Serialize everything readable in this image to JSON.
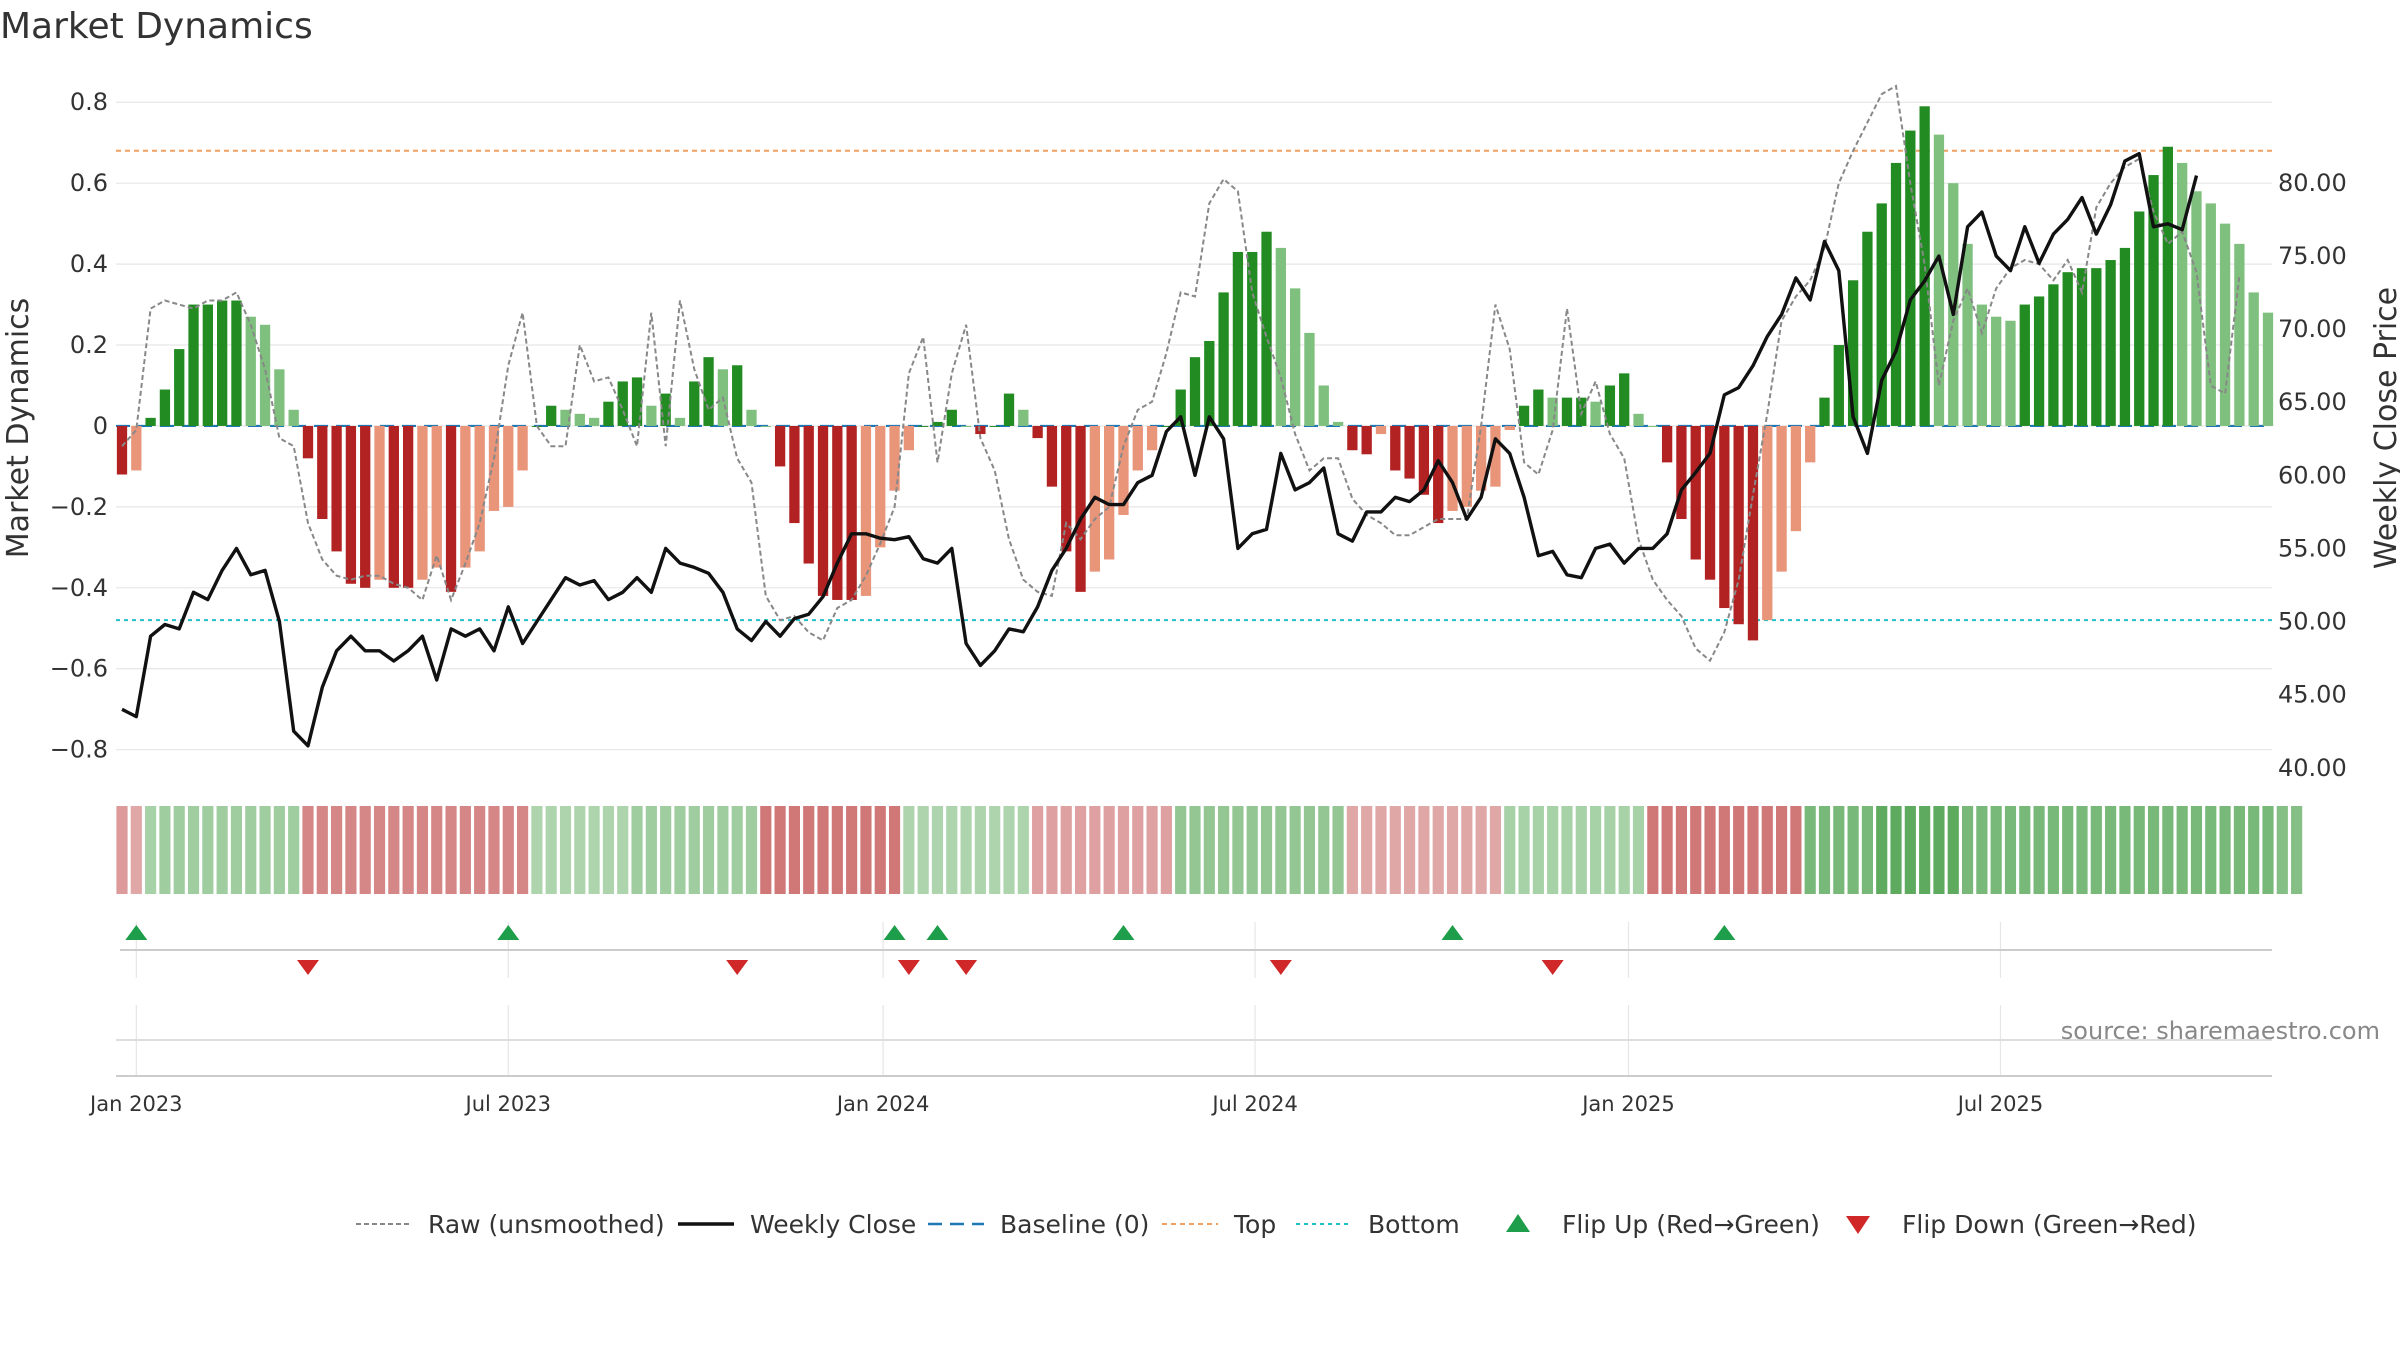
{
  "chart_data": {
    "type": "bar",
    "title": "Market Dynamics",
    "ylabel_left": "Market Dynamics",
    "ylabel_right": "Weekly Close Price",
    "source": "source: sharemaestro.com",
    "ylim_left": [
      -0.87,
      0.85
    ],
    "ylim_right": [
      39.3,
      86.9
    ],
    "yticks_left": [
      "0.8",
      "0.6",
      "0.4",
      "0.2",
      "0",
      "−0.2",
      "−0.4",
      "−0.6",
      "−0.8"
    ],
    "yticks_right": [
      "80.00",
      "75.00",
      "70.00",
      "65.00",
      "60.00",
      "55.00",
      "50.00",
      "45.00",
      "40.00"
    ],
    "xticks": [
      "Jan 2023",
      "Jul 2023",
      "Jan 2024",
      "Jul 2024",
      "Jan 2025",
      "Jul 2025"
    ],
    "top_level": 0.68,
    "bottom_level": -0.48,
    "baseline": 0,
    "dynamics": [
      -0.12,
      -0.11,
      0.02,
      0.09,
      0.19,
      0.3,
      0.3,
      0.31,
      0.31,
      0.27,
      0.25,
      0.14,
      0.04,
      -0.08,
      -0.23,
      -0.31,
      -0.39,
      -0.4,
      -0.38,
      -0.4,
      -0.4,
      -0.38,
      -0.35,
      -0.41,
      -0.35,
      -0.31,
      -0.21,
      -0.2,
      -0.11,
      0.0,
      0.05,
      0.04,
      0.03,
      0.02,
      0.06,
      0.11,
      0.12,
      0.05,
      0.08,
      0.02,
      0.11,
      0.17,
      0.14,
      0.15,
      0.04,
      0.0,
      -0.1,
      -0.24,
      -0.34,
      -0.42,
      -0.43,
      -0.43,
      -0.42,
      -0.3,
      -0.16,
      -0.06,
      0.0,
      0.01,
      0.04,
      0.0,
      -0.02,
      0.0,
      0.08,
      0.04,
      -0.03,
      -0.15,
      -0.31,
      -0.41,
      -0.36,
      -0.33,
      -0.22,
      -0.11,
      -0.06,
      0.0,
      0.09,
      0.17,
      0.21,
      0.33,
      0.43,
      0.43,
      0.48,
      0.44,
      0.34,
      0.23,
      0.1,
      0.01,
      -0.06,
      -0.07,
      -0.02,
      -0.11,
      -0.13,
      -0.17,
      -0.24,
      -0.21,
      -0.2,
      -0.16,
      -0.15,
      -0.01,
      0.05,
      0.09,
      0.07,
      0.07,
      0.07,
      0.06,
      0.1,
      0.13,
      0.03,
      0.0,
      -0.09,
      -0.23,
      -0.33,
      -0.38,
      -0.45,
      -0.49,
      -0.53,
      -0.48,
      -0.36,
      -0.26,
      -0.09,
      0.07,
      0.2,
      0.36,
      0.48,
      0.55,
      0.65,
      0.73,
      0.79,
      0.72,
      0.6,
      0.45,
      0.3,
      0.27,
      0.26,
      0.3,
      0.32,
      0.35,
      0.38,
      0.39,
      0.39,
      0.41,
      0.44,
      0.53,
      0.62,
      0.69,
      0.65,
      0.58,
      0.55,
      0.5,
      0.45,
      0.33,
      0.28
    ],
    "raw": [
      -0.05,
      -0.01,
      0.29,
      0.31,
      0.3,
      0.29,
      0.31,
      0.31,
      0.33,
      0.25,
      0.14,
      -0.03,
      -0.05,
      -0.24,
      -0.33,
      -0.37,
      -0.38,
      -0.37,
      -0.37,
      -0.39,
      -0.4,
      -0.43,
      -0.32,
      -0.43,
      -0.34,
      -0.24,
      -0.08,
      0.15,
      0.28,
      0.0,
      -0.05,
      -0.05,
      0.2,
      0.11,
      0.12,
      0.04,
      -0.05,
      0.28,
      -0.05,
      0.31,
      0.14,
      0.04,
      0.07,
      -0.08,
      -0.14,
      -0.42,
      -0.48,
      -0.47,
      -0.51,
      -0.53,
      -0.45,
      -0.43,
      -0.37,
      -0.29,
      -0.2,
      0.13,
      0.22,
      -0.09,
      0.13,
      0.25,
      -0.03,
      -0.11,
      -0.28,
      -0.38,
      -0.41,
      -0.42,
      -0.24,
      -0.28,
      -0.23,
      -0.2,
      -0.05,
      0.04,
      0.06,
      0.18,
      0.33,
      0.32,
      0.55,
      0.61,
      0.58,
      0.33,
      0.22,
      0.12,
      -0.02,
      -0.11,
      -0.08,
      -0.08,
      -0.18,
      -0.22,
      -0.24,
      -0.27,
      -0.27,
      -0.25,
      -0.23,
      -0.23,
      -0.23,
      0.0,
      0.3,
      0.19,
      -0.09,
      -0.12,
      -0.01,
      0.29,
      0.03,
      0.11,
      -0.02,
      -0.08,
      -0.28,
      -0.38,
      -0.43,
      -0.47,
      -0.55,
      -0.58,
      -0.51,
      -0.38,
      -0.17,
      0.03,
      0.26,
      0.32,
      0.36,
      0.44,
      0.6,
      0.68,
      0.75,
      0.82,
      0.84,
      0.6,
      0.4,
      0.1,
      0.26,
      0.34,
      0.23,
      0.34,
      0.39,
      0.41,
      0.4,
      0.36,
      0.41,
      0.33,
      0.54,
      0.6,
      0.64,
      0.66,
      0.53,
      0.45,
      0.48,
      0.38,
      0.1,
      0.08,
      0.37
    ],
    "close_price": [
      44.0,
      43.5,
      49.0,
      49.8,
      49.5,
      52.0,
      51.5,
      53.5,
      55.0,
      53.2,
      53.5,
      50.0,
      42.5,
      41.5,
      45.5,
      48.0,
      49.0,
      48.0,
      48.0,
      47.3,
      48.0,
      49.0,
      46.0,
      49.5,
      49.0,
      49.5,
      48.0,
      51.0,
      48.5,
      50.0,
      51.5,
      53.0,
      52.5,
      52.8,
      51.5,
      52.0,
      53.0,
      52.0,
      55.0,
      54.0,
      53.7,
      53.3,
      52.0,
      49.5,
      48.7,
      50.0,
      49.0,
      50.2,
      50.5,
      51.7,
      54.0,
      56.0,
      56.0,
      55.7,
      55.6,
      55.8,
      54.3,
      54.0,
      55.0,
      48.5,
      47.0,
      48.0,
      49.5,
      49.3,
      51.0,
      53.5,
      55.0,
      57.0,
      58.5,
      58.0,
      58.0,
      59.5,
      60.0,
      63.0,
      64.0,
      60.0,
      64.0,
      62.5,
      55.0,
      56.0,
      56.3,
      61.5,
      59.0,
      59.5,
      60.5,
      56.0,
      55.5,
      57.5,
      57.5,
      58.5,
      58.2,
      59.0,
      61.0,
      59.5,
      57.0,
      58.5,
      62.5,
      61.5,
      58.5,
      54.5,
      54.8,
      53.2,
      53.0,
      55.0,
      55.3,
      54.0,
      55.0,
      55.0,
      56.0,
      59.0,
      60.2,
      61.5,
      65.5,
      66.0,
      67.5,
      69.5,
      71.0,
      73.5,
      72.0,
      76.0,
      74.0,
      64.0,
      61.5,
      66.5,
      68.5,
      72.0,
      73.3,
      75.0,
      71.0,
      77.0,
      78.0,
      75.0,
      74.0,
      77.0,
      74.5,
      76.5,
      77.5,
      79.0,
      76.5,
      78.5,
      81.5,
      82.0,
      77.0,
      77.2,
      76.8,
      80.5
    ],
    "strength_strip": [
      -0.35,
      -0.25,
      0.25,
      0.3,
      0.3,
      0.3,
      0.3,
      0.3,
      0.3,
      0.3,
      0.3,
      0.3,
      0.3,
      -0.5,
      -0.5,
      -0.5,
      -0.5,
      -0.5,
      -0.5,
      -0.5,
      -0.5,
      -0.5,
      -0.5,
      -0.5,
      -0.5,
      -0.5,
      -0.5,
      -0.5,
      -0.5,
      0.2,
      0.2,
      0.2,
      0.2,
      0.2,
      0.2,
      0.2,
      0.3,
      0.3,
      0.3,
      0.3,
      0.3,
      0.3,
      0.3,
      0.3,
      0.3,
      -0.6,
      -0.6,
      -0.6,
      -0.6,
      -0.6,
      -0.6,
      -0.6,
      -0.6,
      -0.6,
      -0.6,
      0.2,
      0.2,
      0.2,
      0.2,
      0.2,
      0.2,
      0.2,
      0.2,
      0.2,
      -0.3,
      -0.3,
      -0.3,
      -0.3,
      -0.3,
      -0.3,
      -0.3,
      -0.3,
      -0.3,
      -0.3,
      0.4,
      0.4,
      0.4,
      0.4,
      0.4,
      0.4,
      0.4,
      0.4,
      0.4,
      0.4,
      0.4,
      0.4,
      -0.25,
      -0.25,
      -0.25,
      -0.25,
      -0.25,
      -0.25,
      -0.25,
      -0.25,
      -0.25,
      -0.25,
      -0.25,
      0.25,
      0.25,
      0.25,
      0.25,
      0.25,
      0.25,
      0.25,
      0.25,
      0.25,
      0.25,
      -0.6,
      -0.6,
      -0.6,
      -0.6,
      -0.6,
      -0.6,
      -0.6,
      -0.6,
      -0.6,
      -0.6,
      -0.6,
      0.6,
      0.6,
      0.6,
      0.6,
      0.6,
      0.8,
      0.8,
      0.8,
      0.8,
      0.8,
      0.8,
      0.6,
      0.6,
      0.6,
      0.6,
      0.6,
      0.6,
      0.6,
      0.6,
      0.6,
      0.6,
      0.6,
      0.6,
      0.6,
      0.6,
      0.6,
      0.6,
      0.6,
      0.6,
      0.6,
      0.6,
      0.6,
      0.6,
      0.5,
      0.5
    ],
    "flip_up_weeks": [
      1,
      27,
      54,
      57,
      70,
      93,
      112
    ],
    "flip_down_weeks": [
      13,
      43,
      55,
      59,
      81,
      100
    ],
    "colors": {
      "strong_up": "#228b22",
      "weak_up": "#7fc07f",
      "strong_down": "#b22222",
      "weak_down": "#e8957a",
      "price": "#111111",
      "raw": "#888888",
      "baseline": "#1f77b4",
      "top": "#f0a060",
      "bottom": "#20c0c8",
      "flip_up": "#1e9e4a",
      "flip_down": "#d02828",
      "grid": "#e6e6e6"
    },
    "legend": [
      {
        "label": "Raw (unsmoothed)",
        "kind": "raw-line"
      },
      {
        "label": "Weekly Close",
        "kind": "price-line"
      },
      {
        "label": "Baseline (0)",
        "kind": "baseline-line"
      },
      {
        "label": "Top",
        "kind": "top-line"
      },
      {
        "label": "Bottom",
        "kind": "bottom-line"
      },
      {
        "label": "Flip Up (Red→Green)",
        "kind": "flip-up-marker"
      },
      {
        "label": "Flip Down (Green→Red)",
        "kind": "flip-down-marker"
      }
    ]
  }
}
